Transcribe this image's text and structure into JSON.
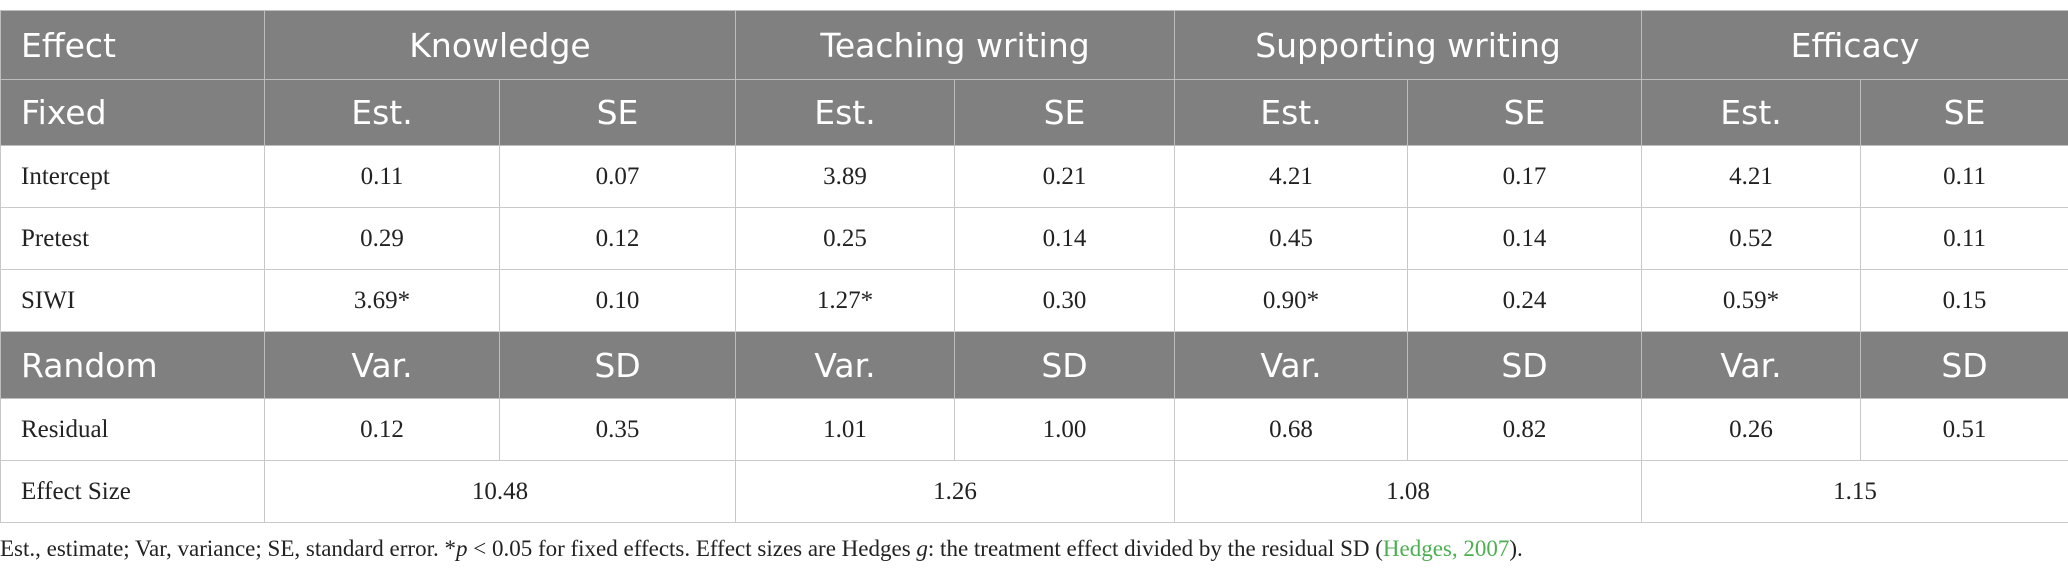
{
  "table": {
    "header": [
      "Effect",
      "Knowledge",
      "Teaching writing",
      "Supporting writing",
      "Efficacy"
    ],
    "fixed_header": [
      "Fixed",
      "Est.",
      "SE",
      "Est.",
      "SE",
      "Est.",
      "SE",
      "Est.",
      "SE"
    ],
    "fixed_rows": [
      [
        "Intercept",
        "0.11",
        "0.07",
        "3.89",
        "0.21",
        "4.21",
        "0.17",
        "4.21",
        "0.11"
      ],
      [
        "Pretest",
        "0.29",
        "0.12",
        "0.25",
        "0.14",
        "0.45",
        "0.14",
        "0.52",
        "0.11"
      ],
      [
        "SIWI",
        "3.69*",
        "0.10",
        "1.27*",
        "0.30",
        "0.90*",
        "0.24",
        "0.59*",
        "0.15"
      ]
    ],
    "random_header": [
      "Random",
      "Var.",
      "SD",
      "Var.",
      "SD",
      "Var.",
      "SD",
      "Var.",
      "SD"
    ],
    "random_rows": [
      [
        "Residual",
        "0.12",
        "0.35",
        "1.01",
        "1.00",
        "0.68",
        "0.82",
        "0.26",
        "0.51"
      ]
    ],
    "effect_size": [
      "Effect Size",
      "10.48",
      "1.26",
      "1.08",
      "1.15"
    ]
  },
  "footnote": [
    "Est., estimate; Var, variance; SE, standard error. *",
    "p",
    " < 0.05 for fixed effects. Effect sizes are Hedges ",
    "g",
    ": the treatment effect divided by the residual SD (",
    "Hedges, 2007",
    ")."
  ]
}
